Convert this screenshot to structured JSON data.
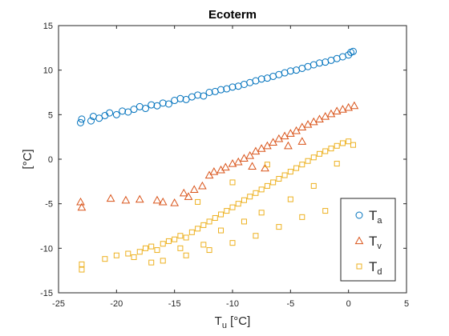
{
  "chart_data": {
    "type": "scatter",
    "title": "Ecoterm",
    "xlabel": {
      "main": "T",
      "sub": "u",
      "unit": " [°C]"
    },
    "ylabel": "[°C]",
    "xlim": [
      -25,
      5
    ],
    "ylim": [
      -15,
      15
    ],
    "xticks": [
      -25,
      -20,
      -15,
      -10,
      -5,
      0,
      5
    ],
    "yticks": [
      -15,
      -10,
      -5,
      0,
      5,
      10,
      15
    ],
    "grid": false,
    "legend_position": "bottom-right",
    "series": [
      {
        "name": {
          "main": "T",
          "sub": "a"
        },
        "marker": "circle",
        "color": "#0072BD",
        "points": [
          [
            -23.1,
            4.1
          ],
          [
            -23.0,
            4.5
          ],
          [
            -22.2,
            4.3
          ],
          [
            -22.0,
            4.8
          ],
          [
            -21.5,
            4.6
          ],
          [
            -21.0,
            4.9
          ],
          [
            -20.6,
            5.2
          ],
          [
            -20.0,
            5.0
          ],
          [
            -19.5,
            5.4
          ],
          [
            -19.0,
            5.3
          ],
          [
            -18.5,
            5.6
          ],
          [
            -18.0,
            5.9
          ],
          [
            -17.5,
            5.7
          ],
          [
            -17.0,
            6.1
          ],
          [
            -16.5,
            6.0
          ],
          [
            -16.0,
            6.3
          ],
          [
            -15.5,
            6.2
          ],
          [
            -15.0,
            6.6
          ],
          [
            -14.5,
            6.8
          ],
          [
            -14.0,
            6.7
          ],
          [
            -13.5,
            7.0
          ],
          [
            -13.0,
            7.2
          ],
          [
            -12.5,
            7.1
          ],
          [
            -12.0,
            7.5
          ],
          [
            -11.5,
            7.6
          ],
          [
            -11.0,
            7.8
          ],
          [
            -10.5,
            7.9
          ],
          [
            -10.0,
            8.1
          ],
          [
            -9.5,
            8.2
          ],
          [
            -9.0,
            8.4
          ],
          [
            -8.5,
            8.6
          ],
          [
            -8.0,
            8.8
          ],
          [
            -7.5,
            9.0
          ],
          [
            -7.0,
            9.1
          ],
          [
            -6.5,
            9.3
          ],
          [
            -6.0,
            9.5
          ],
          [
            -5.5,
            9.7
          ],
          [
            -5.0,
            9.9
          ],
          [
            -4.5,
            10.0
          ],
          [
            -4.0,
            10.2
          ],
          [
            -3.5,
            10.4
          ],
          [
            -3.0,
            10.6
          ],
          [
            -2.5,
            10.8
          ],
          [
            -2.0,
            10.9
          ],
          [
            -1.5,
            11.1
          ],
          [
            -1.0,
            11.3
          ],
          [
            -0.5,
            11.5
          ],
          [
            0.0,
            11.7
          ],
          [
            0.2,
            12.0
          ],
          [
            0.4,
            12.1
          ]
        ]
      },
      {
        "name": {
          "main": "T",
          "sub": "v"
        },
        "marker": "triangle",
        "color": "#D95319",
        "points": [
          [
            -23.1,
            -4.8
          ],
          [
            -23.0,
            -5.4
          ],
          [
            -20.5,
            -4.4
          ],
          [
            -19.2,
            -4.6
          ],
          [
            -18.0,
            -4.5
          ],
          [
            -16.5,
            -4.6
          ],
          [
            -16.0,
            -4.8
          ],
          [
            -15.0,
            -4.9
          ],
          [
            -14.2,
            -3.8
          ],
          [
            -13.8,
            -4.2
          ],
          [
            -13.3,
            -3.4
          ],
          [
            -12.6,
            -3.0
          ],
          [
            -12.0,
            -1.8
          ],
          [
            -11.6,
            -1.4
          ],
          [
            -11.0,
            -1.2
          ],
          [
            -10.6,
            -0.9
          ],
          [
            -10.0,
            -0.5
          ],
          [
            -9.5,
            -0.3
          ],
          [
            -9.0,
            0.1
          ],
          [
            -8.5,
            0.4
          ],
          [
            -8.0,
            0.9
          ],
          [
            -7.5,
            1.2
          ],
          [
            -7.0,
            1.5
          ],
          [
            -6.5,
            1.9
          ],
          [
            -6.0,
            2.3
          ],
          [
            -5.5,
            2.6
          ],
          [
            -5.0,
            2.9
          ],
          [
            -4.5,
            3.2
          ],
          [
            -4.0,
            3.6
          ],
          [
            -3.5,
            3.9
          ],
          [
            -3.0,
            4.2
          ],
          [
            -2.5,
            4.5
          ],
          [
            -2.0,
            4.8
          ],
          [
            -1.5,
            5.1
          ],
          [
            -1.0,
            5.4
          ],
          [
            -0.5,
            5.6
          ],
          [
            0.0,
            5.8
          ],
          [
            0.5,
            6.0
          ],
          [
            -7.2,
            -1.0
          ],
          [
            -8.3,
            -0.8
          ],
          [
            -5.2,
            1.5
          ],
          [
            -4.0,
            2.0
          ]
        ]
      },
      {
        "name": {
          "main": "T",
          "sub": "d"
        },
        "marker": "square",
        "color": "#EDB120",
        "points": [
          [
            -23.0,
            -11.8
          ],
          [
            -23.0,
            -12.4
          ],
          [
            -21.0,
            -11.2
          ],
          [
            -20.0,
            -10.8
          ],
          [
            -19.0,
            -10.6
          ],
          [
            -18.5,
            -11.0
          ],
          [
            -18.0,
            -10.4
          ],
          [
            -17.5,
            -10.0
          ],
          [
            -17.0,
            -9.8
          ],
          [
            -16.5,
            -10.2
          ],
          [
            -16.0,
            -9.5
          ],
          [
            -15.5,
            -9.2
          ],
          [
            -15.0,
            -9.0
          ],
          [
            -14.5,
            -8.6
          ],
          [
            -14.0,
            -8.8
          ],
          [
            -13.5,
            -8.2
          ],
          [
            -13.0,
            -7.8
          ],
          [
            -12.5,
            -7.4
          ],
          [
            -12.0,
            -7.0
          ],
          [
            -11.5,
            -6.6
          ],
          [
            -11.0,
            -6.2
          ],
          [
            -10.5,
            -5.8
          ],
          [
            -10.0,
            -5.4
          ],
          [
            -9.5,
            -5.0
          ],
          [
            -9.0,
            -4.6
          ],
          [
            -8.5,
            -4.2
          ],
          [
            -8.0,
            -3.8
          ],
          [
            -7.5,
            -3.4
          ],
          [
            -7.0,
            -3.0
          ],
          [
            -6.5,
            -2.6
          ],
          [
            -6.0,
            -2.2
          ],
          [
            -5.5,
            -1.8
          ],
          [
            -5.0,
            -1.4
          ],
          [
            -4.5,
            -1.0
          ],
          [
            -4.0,
            -0.6
          ],
          [
            -3.5,
            -0.2
          ],
          [
            -3.0,
            0.2
          ],
          [
            -2.5,
            0.6
          ],
          [
            -2.0,
            0.9
          ],
          [
            -1.5,
            1.2
          ],
          [
            -1.0,
            1.5
          ],
          [
            -0.5,
            1.8
          ],
          [
            0.0,
            2.0
          ],
          [
            0.4,
            1.6
          ],
          [
            -16.0,
            -11.4
          ],
          [
            -14.0,
            -10.8
          ],
          [
            -12.0,
            -10.2
          ],
          [
            -10.0,
            -9.4
          ],
          [
            -8.0,
            -8.6
          ],
          [
            -6.0,
            -7.6
          ],
          [
            -4.0,
            -6.5
          ],
          [
            -2.0,
            -5.8
          ],
          [
            -13.0,
            -4.8
          ],
          [
            -10.0,
            -2.6
          ],
          [
            -7.0,
            -0.6
          ],
          [
            -14.5,
            -10.0
          ],
          [
            -11.0,
            -8.0
          ],
          [
            -9.0,
            -7.0
          ],
          [
            -5.0,
            -4.5
          ],
          [
            -3.0,
            -3.0
          ],
          [
            -1.0,
            -0.5
          ],
          [
            -17.0,
            -11.6
          ],
          [
            -12.5,
            -9.6
          ],
          [
            -7.5,
            -6.0
          ]
        ]
      }
    ]
  }
}
